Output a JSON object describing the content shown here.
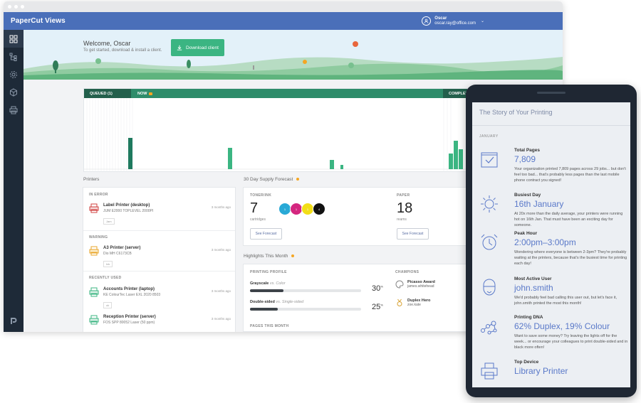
{
  "app": {
    "brand": "PaperCut Views"
  },
  "user": {
    "name": "Oscar",
    "email": "oscar.ray@office.com"
  },
  "hero": {
    "welcome": "Welcome, Oscar",
    "subtitle": "To get started, download & install a client.",
    "download_label": "Download client"
  },
  "timeline": {
    "queued_label": "QUEUED (1)",
    "now_label": "NOW",
    "complete_label": "COMPLETE"
  },
  "printers": {
    "title": "Printers",
    "sections": {
      "error": "IN ERROR",
      "warning": "WARNING",
      "recent": "RECENTLY USED"
    },
    "items": [
      {
        "name": "Label Printer (desktop)",
        "model": "JUM E2000 TOPLEVEL 2000PI",
        "tag": "Jam",
        "time": "3 months ago"
      },
      {
        "name": "A3 Printer (server)",
        "model": "Dio MH C6173CB",
        "tag": "Ink",
        "time": "3 months ago"
      },
      {
        "name": "Accounts Printer (laptop)",
        "model": "KE ColourTec Laser EXL 2020 8503",
        "tag": "ok",
        "time": "3 months ago"
      },
      {
        "name": "Reception Printer (server)",
        "model": "FOS SPP 80052 Laser (50 ppm)",
        "tag": "ok",
        "time": "3 months ago"
      }
    ]
  },
  "forecast": {
    "title": "30 Day Supply Forecast",
    "toner_label": "TONER/INK",
    "toner_value": "7",
    "toner_unit": "cartridges",
    "toner_dots": [
      "1",
      "1",
      "1",
      "4"
    ],
    "paper_label": "PAPER",
    "paper_value": "18",
    "paper_unit": "reams",
    "button_label": "See Forecast"
  },
  "highlights": {
    "title": "Highlights This Month",
    "profile_label": "PRINTING PROFILE",
    "rows": [
      {
        "label": "Grayscale",
        "vs": "vs. Color",
        "percent": 30
      },
      {
        "label": "Double-sided",
        "vs": "vs. Single-sided",
        "percent": 25
      }
    ],
    "pages_label": "PAGES THIS MONTH",
    "champions_label": "CHAMPIONS",
    "champions": [
      {
        "title": "Picasso Award",
        "user": "james.whitehead"
      },
      {
        "title": "Duplex Hero",
        "user": "zoe.kate"
      }
    ]
  },
  "story": {
    "title": "The Story of Your Printing",
    "month": "JANUARY",
    "items": [
      {
        "icon": "clipboard-check-icon",
        "heading": "Total Pages",
        "value": "7,809",
        "desc": "Your organization printed 7,809 pages across 29 jobs... but don't feel too bad... that's probably less pages than the last mobile phone contract you signed!"
      },
      {
        "icon": "sun-icon",
        "heading": "Busiest Day",
        "value": "16th January",
        "desc": "At 20x more than the daily average, your printers were running hot on 16th Jan. That must have been an exciting day for someone."
      },
      {
        "icon": "alarm-clock-icon",
        "heading": "Peak Hour",
        "value": "2:00pm–3:00pm",
        "desc": "Wondering where everyone is between 2-3pm? They're probably waiting at the printers, because that's the busiest time for printing each day!"
      },
      {
        "icon": "user-face-icon",
        "heading": "Most Active User",
        "value": "john.smith",
        "desc": "We'd probably feel bad calling this user out, but let's face it, john.smith printed the most this month!"
      },
      {
        "icon": "dna-icon",
        "heading": "Printing DNA",
        "value": "62% Duplex, 19% Colour",
        "desc": "Want to save some money? Try leaving the lights off for the week... or encourage your colleagues to print double-sided and in black more often!"
      },
      {
        "icon": "printer-icon",
        "heading": "Top Device",
        "value": "Library Printer",
        "desc": ""
      }
    ]
  },
  "colors": {
    "brand_blue": "#4a6fb9",
    "accent_green": "#3bb582",
    "sidebar": "#1e2a38",
    "story_accent": "#5a79c9"
  }
}
